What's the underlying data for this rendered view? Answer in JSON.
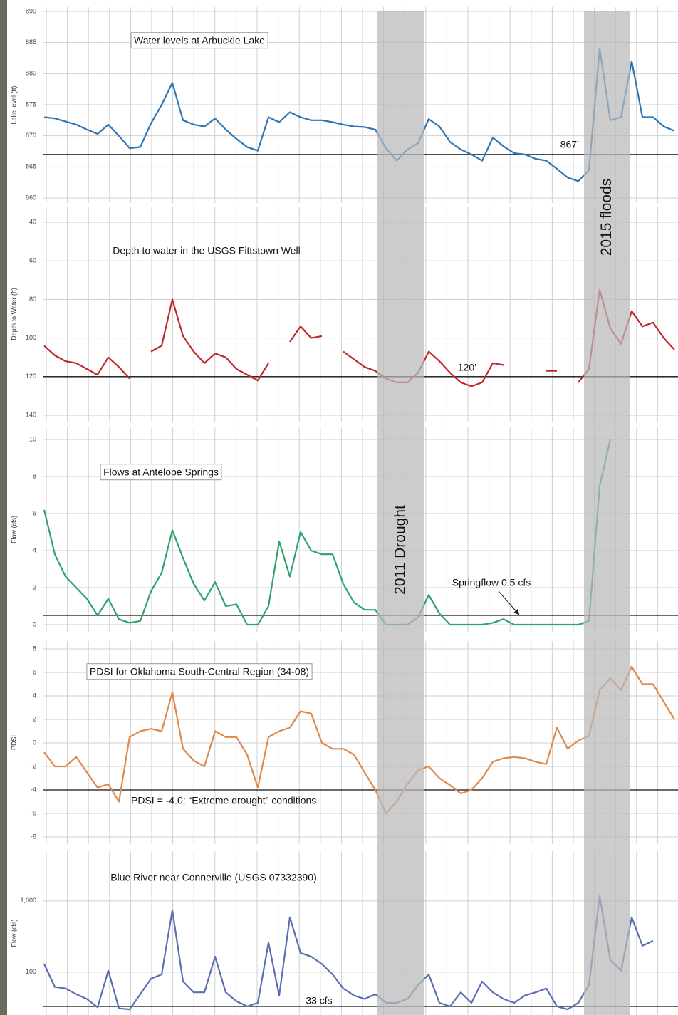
{
  "chart_data": [
    {
      "type": "line",
      "title": "Water levels at Arbuckle Lake",
      "y_label": "Lake level (ft)",
      "color": "#2e75b6",
      "ylim": [
        860,
        890
      ],
      "yticks": [
        860,
        865,
        870,
        875,
        880,
        885,
        890
      ],
      "grid": true,
      "hline": {
        "value": 867,
        "label": "867’"
      },
      "values": [
        873,
        872.8,
        872.3,
        871.8,
        871,
        870.3,
        871.8,
        870,
        868,
        868.2,
        872,
        875,
        878.5,
        872.5,
        871.8,
        871.5,
        872.8,
        871,
        869.5,
        868.2,
        867.6,
        873,
        872.2,
        873.8,
        873,
        872.5,
        872.5,
        872.2,
        871.8,
        871.5,
        871.4,
        871,
        868,
        866,
        867.8,
        868.8,
        872.7,
        871.5,
        869,
        867.8,
        867,
        866,
        869.7,
        868.3,
        867.2,
        867,
        866.3,
        866,
        864.7,
        863.3,
        862.7,
        864.5,
        884,
        872.5,
        873,
        882,
        873,
        873,
        871.5,
        870.8
      ]
    },
    {
      "type": "line",
      "title": "Depth to water in the USGS Fittstown Well",
      "y_label": "Depth to Water (ft)",
      "color": "#c0282d",
      "ylim": [
        140,
        40
      ],
      "yticks": [
        40,
        60,
        80,
        100,
        120,
        140
      ],
      "grid": true,
      "hline": {
        "value": 120,
        "label": "120’"
      },
      "values": [
        104,
        109,
        112,
        113,
        116,
        119,
        110,
        115,
        121,
        null,
        107,
        104,
        80,
        99,
        107,
        113,
        108,
        110,
        116,
        119,
        122,
        113,
        null,
        102,
        94,
        100,
        99,
        null,
        107,
        111,
        115,
        117,
        121,
        123,
        123,
        118,
        107,
        112,
        118,
        123,
        125,
        123,
        113,
        114,
        null,
        null,
        null,
        117,
        117,
        null,
        123,
        116,
        75,
        95,
        103,
        86,
        94,
        92,
        100,
        106
      ]
    },
    {
      "type": "line",
      "title": "Flows at Antelope Springs",
      "y_label": "Flow (cfs)",
      "color": "#2ea36b",
      "ylim": [
        0,
        10
      ],
      "yticks": [
        0,
        2,
        4,
        6,
        8,
        10
      ],
      "grid": true,
      "hline": {
        "value": 0.5,
        "label": "Springflow 0.5 cfs"
      },
      "values": [
        6.2,
        3.8,
        2.6,
        2.0,
        1.4,
        0.5,
        1.4,
        0.3,
        0.1,
        0.2,
        1.8,
        2.8,
        5.1,
        3.6,
        2.2,
        1.3,
        2.3,
        1.0,
        1.1,
        0,
        0,
        1.0,
        4.5,
        2.6,
        5.0,
        4.0,
        3.8,
        3.8,
        2.2,
        1.2,
        0.8,
        0.8,
        0,
        0,
        0,
        0.4,
        1.6,
        0.6,
        0,
        0,
        0,
        0,
        0.1,
        0.3,
        0,
        0,
        0,
        0,
        0,
        0,
        0,
        0.2,
        7.5,
        10,
        null,
        null,
        null,
        null,
        null,
        null
      ]
    },
    {
      "type": "line",
      "title": "PDSI for Oklahoma South-Central Region (34-08)",
      "y_label": "PDSI",
      "color": "#e0884a",
      "ylim": [
        -8,
        8
      ],
      "yticks": [
        -8,
        -6,
        -4,
        -2,
        0,
        2,
        4,
        6,
        8
      ],
      "grid": true,
      "hline": {
        "value": -4,
        "label": "PDSI = -4.0: “Extreme drought” conditions"
      },
      "values": [
        -0.8,
        -2,
        -2,
        -1.2,
        -2.5,
        -3.8,
        -3.5,
        -5,
        0.5,
        1.0,
        1.2,
        1.0,
        4.3,
        -0.5,
        -1.5,
        -2,
        1.0,
        0.5,
        0.5,
        -1,
        -3.8,
        0.5,
        1.0,
        1.3,
        2.7,
        2.5,
        0,
        -0.5,
        -0.5,
        -1,
        -2.5,
        -4,
        -6,
        -5,
        -3.5,
        -2.3,
        -2,
        -3,
        -3.6,
        -4.3,
        -4,
        -3,
        -1.6,
        -1.3,
        -1.2,
        -1.3,
        -1.6,
        -1.8,
        1.3,
        -0.5,
        0.2,
        0.6,
        4.5,
        5.5,
        4.5,
        6.5,
        5,
        5,
        3.5,
        2
      ]
    },
    {
      "type": "line",
      "title": "Blue River near Connerville (USGS 07332390)",
      "y_label": "Flow (cfs)",
      "color": "#5a6fb0",
      "log_scale": true,
      "ylim": [
        25,
        5000
      ],
      "yticks": [
        100,
        {
          "value": 1000,
          "label": "1,000"
        }
      ],
      "grid": true,
      "hline": {
        "value": 33,
        "label": "33 cfs"
      },
      "values": [
        130,
        62,
        59,
        49,
        42,
        32,
        105,
        31,
        30,
        49,
        81,
        93,
        740,
        74,
        52,
        52,
        165,
        52,
        39,
        33,
        37,
        260,
        47,
        590,
        186,
        165,
        130,
        93,
        59,
        47,
        42,
        49,
        37,
        37,
        42,
        66,
        93,
        37,
        33,
        52,
        37,
        74,
        52,
        42,
        37,
        47,
        52,
        59,
        33,
        30,
        37,
        66,
        1175,
        148,
        105,
        590,
        234,
        275,
        null,
        null
      ]
    }
  ],
  "bands": [
    {
      "label": "2011 Drought"
    },
    {
      "label": "2015 floods"
    }
  ]
}
